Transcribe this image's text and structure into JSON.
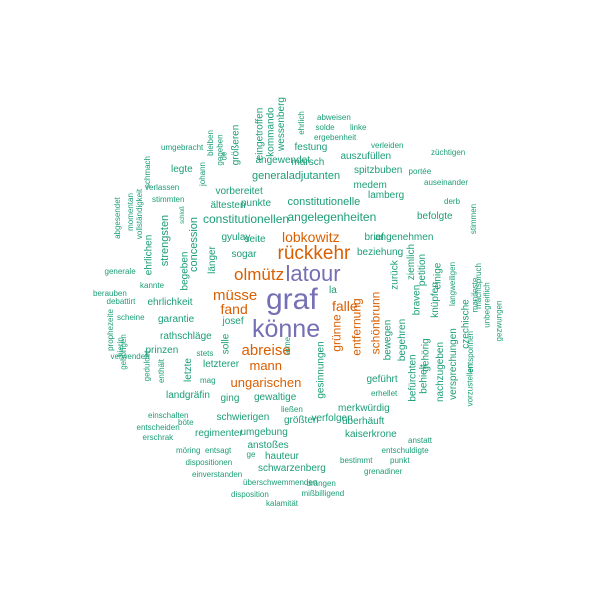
{
  "colors": {
    "teal": "#1b9e77",
    "orange": "#d95f02",
    "purple": "#7570b3"
  },
  "words": [
    {
      "text": "graf",
      "color": "purple"
    },
    {
      "text": "könne",
      "color": "purple"
    },
    {
      "text": "latour",
      "color": "purple"
    },
    {
      "text": "rückkehr",
      "color": "orange"
    },
    {
      "text": "olmütz",
      "color": "orange"
    },
    {
      "text": "müsse",
      "color": "orange"
    },
    {
      "text": "abreise",
      "color": "orange"
    },
    {
      "text": "falle",
      "color": "orange"
    },
    {
      "text": "fand",
      "color": "orange"
    },
    {
      "text": "lobkowitz",
      "color": "orange"
    },
    {
      "text": "ungarischen",
      "color": "orange"
    },
    {
      "text": "mann",
      "color": "orange"
    },
    {
      "text": "entfernung",
      "color": "orange"
    },
    {
      "text": "grünne",
      "color": "orange"
    },
    {
      "text": "schönbrunn",
      "color": "orange"
    },
    {
      "text": "angelegenheiten",
      "color": "teal"
    },
    {
      "text": "constitutionellen",
      "color": "teal"
    },
    {
      "text": "constitutionelle",
      "color": "teal"
    },
    {
      "text": "generaladjutanten",
      "color": "teal"
    },
    {
      "text": "angewendet",
      "color": "teal"
    },
    {
      "text": "vorbereitet",
      "color": "teal"
    },
    {
      "text": "ältesten",
      "color": "teal"
    },
    {
      "text": "punkte",
      "color": "teal"
    },
    {
      "text": "marsch",
      "color": "teal"
    },
    {
      "text": "festung",
      "color": "teal"
    },
    {
      "text": "auszufüllen",
      "color": "teal"
    },
    {
      "text": "spitzbuben",
      "color": "teal"
    },
    {
      "text": "medem",
      "color": "teal"
    },
    {
      "text": "lamberg",
      "color": "teal"
    },
    {
      "text": "befolgte",
      "color": "teal"
    },
    {
      "text": "angenehmen",
      "color": "teal"
    },
    {
      "text": "brief",
      "color": "teal"
    },
    {
      "text": "beziehung",
      "color": "teal"
    },
    {
      "text": "seite",
      "color": "teal"
    },
    {
      "text": "sogar",
      "color": "teal"
    },
    {
      "text": "gyulay",
      "color": "teal"
    },
    {
      "text": "strengsten",
      "color": "teal"
    },
    {
      "text": "concession",
      "color": "teal"
    },
    {
      "text": "länger",
      "color": "teal"
    },
    {
      "text": "ehrlichkeit",
      "color": "teal"
    },
    {
      "text": "garantie",
      "color": "teal"
    },
    {
      "text": "rathschläge",
      "color": "teal"
    },
    {
      "text": "prinzen",
      "color": "teal"
    },
    {
      "text": "josef",
      "color": "teal"
    },
    {
      "text": "solle",
      "color": "teal"
    },
    {
      "text": "stets",
      "color": "teal"
    },
    {
      "text": "letzterer",
      "color": "teal"
    },
    {
      "text": "gewaltige",
      "color": "teal"
    },
    {
      "text": "ging",
      "color": "teal"
    },
    {
      "text": "landgräfin",
      "color": "teal"
    },
    {
      "text": "letzte",
      "color": "teal"
    },
    {
      "text": "schwierigen",
      "color": "teal"
    },
    {
      "text": "regimenter",
      "color": "teal"
    },
    {
      "text": "umgebung",
      "color": "teal"
    },
    {
      "text": "größten",
      "color": "teal"
    },
    {
      "text": "ließen",
      "color": "teal"
    },
    {
      "text": "merkwürdig",
      "color": "teal"
    },
    {
      "text": "überhäuft",
      "color": "teal"
    },
    {
      "text": "kaiserkrone",
      "color": "teal"
    },
    {
      "text": "verfolgen",
      "color": "teal"
    },
    {
      "text": "anstoßes",
      "color": "teal"
    },
    {
      "text": "hauteur",
      "color": "teal"
    },
    {
      "text": "schwarzenberg",
      "color": "teal"
    },
    {
      "text": "gesinnungen",
      "color": "teal"
    },
    {
      "text": "geführt",
      "color": "teal"
    },
    {
      "text": "erhellet",
      "color": "teal"
    },
    {
      "text": "bewegen",
      "color": "teal"
    },
    {
      "text": "begehren",
      "color": "teal"
    },
    {
      "text": "befürchten",
      "color": "teal"
    },
    {
      "text": "behielt",
      "color": "teal"
    },
    {
      "text": "gehörig",
      "color": "teal"
    },
    {
      "text": "zurück",
      "color": "teal"
    },
    {
      "text": "braven",
      "color": "teal"
    },
    {
      "text": "ziemlich",
      "color": "teal"
    },
    {
      "text": "nachzugeben",
      "color": "teal"
    },
    {
      "text": "knüpfen",
      "color": "teal"
    },
    {
      "text": "einige",
      "color": "teal"
    },
    {
      "text": "petition",
      "color": "teal"
    },
    {
      "text": "versprechungen",
      "color": "teal"
    },
    {
      "text": "czechische",
      "color": "teal"
    },
    {
      "text": "eingetroffen",
      "color": "teal"
    },
    {
      "text": "kommando",
      "color": "teal"
    },
    {
      "text": "wessenberg",
      "color": "teal"
    },
    {
      "text": "größeren",
      "color": "teal"
    },
    {
      "text": "gegeben",
      "color": "teal"
    },
    {
      "text": "bleiben",
      "color": "teal"
    },
    {
      "text": "de",
      "color": "teal"
    },
    {
      "text": "johann",
      "color": "teal"
    },
    {
      "text": "legte",
      "color": "teal"
    },
    {
      "text": "umgebracht",
      "color": "teal"
    },
    {
      "text": "schmach",
      "color": "teal"
    },
    {
      "text": "verlassen",
      "color": "teal"
    },
    {
      "text": "stimmten",
      "color": "teal"
    },
    {
      "text": "momentan",
      "color": "teal"
    },
    {
      "text": "vollständigkeit",
      "color": "teal"
    },
    {
      "text": "schloß",
      "color": "teal"
    },
    {
      "text": "ehrlichen",
      "color": "teal"
    },
    {
      "text": "abgesendet",
      "color": "teal"
    },
    {
      "text": "begeben",
      "color": "teal"
    },
    {
      "text": "generale",
      "color": "teal"
    },
    {
      "text": "kannte",
      "color": "teal"
    },
    {
      "text": "berauben",
      "color": "teal"
    },
    {
      "text": "debattirt",
      "color": "teal"
    },
    {
      "text": "scheine",
      "color": "teal"
    },
    {
      "text": "prophezeite",
      "color": "teal"
    },
    {
      "text": "gehörigen",
      "color": "teal"
    },
    {
      "text": "hierin",
      "color": "teal"
    },
    {
      "text": "verwenden",
      "color": "teal"
    },
    {
      "text": "geduldet",
      "color": "teal"
    },
    {
      "text": "enthält",
      "color": "teal"
    },
    {
      "text": "arme",
      "color": "teal"
    },
    {
      "text": "mag",
      "color": "teal"
    },
    {
      "text": "la",
      "color": "teal"
    },
    {
      "text": "einschalten",
      "color": "teal"
    },
    {
      "text": "böte",
      "color": "teal"
    },
    {
      "text": "entscheiden",
      "color": "teal"
    },
    {
      "text": "erschrak",
      "color": "teal"
    },
    {
      "text": "möring",
      "color": "teal"
    },
    {
      "text": "entsagt",
      "color": "teal"
    },
    {
      "text": "ge",
      "color": "teal"
    },
    {
      "text": "dispositionen",
      "color": "teal"
    },
    {
      "text": "einverstanden",
      "color": "teal"
    },
    {
      "text": "überschwemmenden",
      "color": "teal"
    },
    {
      "text": "drängen",
      "color": "teal"
    },
    {
      "text": "disposition",
      "color": "teal"
    },
    {
      "text": "mißbilligend",
      "color": "teal"
    },
    {
      "text": "kalamität",
      "color": "teal"
    },
    {
      "text": "bestimmt",
      "color": "teal"
    },
    {
      "text": "punkt",
      "color": "teal"
    },
    {
      "text": "grenadiner",
      "color": "teal"
    },
    {
      "text": "entschuldigte",
      "color": "teal"
    },
    {
      "text": "anstatt",
      "color": "teal"
    },
    {
      "text": "ehrlich",
      "color": "teal"
    },
    {
      "text": "abweisen",
      "color": "teal"
    },
    {
      "text": "solde",
      "color": "teal"
    },
    {
      "text": "linke",
      "color": "teal"
    },
    {
      "text": "ergebenheit",
      "color": "teal"
    },
    {
      "text": "verleiden",
      "color": "teal"
    },
    {
      "text": "züchtigen",
      "color": "teal"
    },
    {
      "text": "portée",
      "color": "teal"
    },
    {
      "text": "auseinander",
      "color": "teal"
    },
    {
      "text": "derb",
      "color": "teal"
    },
    {
      "text": "stimmen",
      "color": "teal"
    },
    {
      "text": "unbegreiflich",
      "color": "teal"
    },
    {
      "text": "mächtspruch",
      "color": "teal"
    },
    {
      "text": "manifeste",
      "color": "teal"
    },
    {
      "text": "langweiligen",
      "color": "teal"
    },
    {
      "text": "gezwungen",
      "color": "teal"
    },
    {
      "text": "entsponnen",
      "color": "teal"
    },
    {
      "text": "vorzustellen",
      "color": "teal"
    }
  ]
}
